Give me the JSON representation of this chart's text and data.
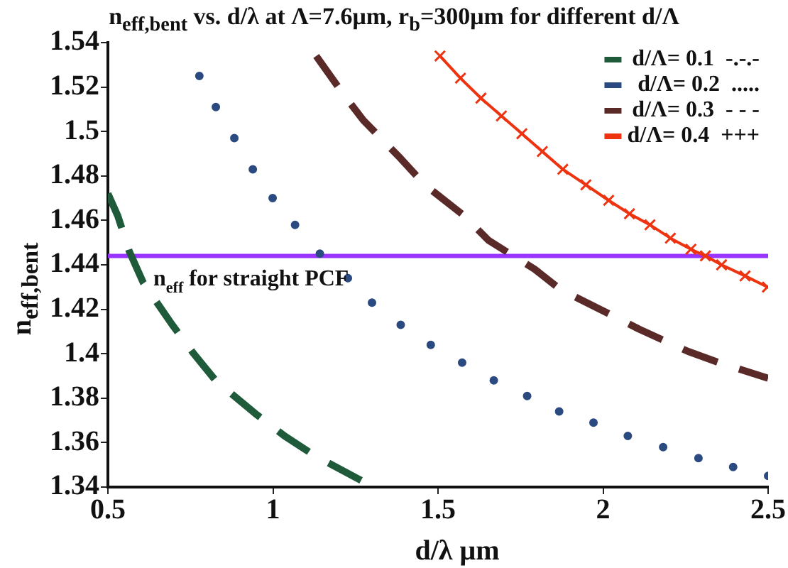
{
  "chart_data": {
    "type": "line",
    "title": "n$_{eff,bent}$ vs. d/λ at Λ=7.6μm, r$_{b}$=300μm for different d/Λ",
    "xlabel": "d/λ  μm",
    "ylabel": "n$_{eff,bent}$",
    "xlim": [
      0.5,
      2.5
    ],
    "xticks": [
      0.5,
      1,
      1.5,
      2,
      2.5
    ],
    "ylim": [
      1.34,
      1.54
    ],
    "yticks": [
      1.34,
      1.36,
      1.38,
      1.4,
      1.42,
      1.44,
      1.46,
      1.48,
      1.5,
      1.52,
      1.54
    ],
    "grid": false,
    "legend": "top right",
    "series": [
      {
        "name": "d/Λ= 0.1  -.-.-",
        "line_style": "dashed",
        "color": "#1f5a3a",
        "x": [
          0.5,
          0.53,
          0.565,
          0.607,
          0.695,
          0.76,
          0.826,
          0.947,
          1.035,
          1.128,
          1.267
        ],
        "values": [
          1.472,
          1.462,
          1.446,
          1.432,
          1.413,
          1.4,
          1.388,
          1.373,
          1.363,
          1.354,
          1.343
        ]
      },
      {
        "name": "d/Λ= 0.2  .....",
        "type": "scatter",
        "marker": "circle",
        "color": "#2a4a80",
        "x": [
          0.777,
          0.827,
          0.883,
          0.939,
          0.999,
          1.067,
          1.142,
          1.227,
          1.3,
          1.387,
          1.478,
          1.573,
          1.669,
          1.77,
          1.867,
          1.971,
          2.075,
          2.182,
          2.289,
          2.394,
          2.5
        ],
        "values": [
          1.525,
          1.511,
          1.497,
          1.483,
          1.47,
          1.458,
          1.445,
          1.434,
          1.423,
          1.413,
          1.404,
          1.396,
          1.388,
          1.381,
          1.374,
          1.369,
          1.363,
          1.358,
          1.353,
          1.349,
          1.345
        ]
      },
      {
        "name": "d/Λ= 0.3  - - -",
        "line_style": "dashed",
        "color": "#5a2a28",
        "x": [
          1.131,
          1.212,
          1.274,
          1.386,
          1.46,
          1.58,
          1.653,
          1.793,
          1.87,
          2.017,
          2.11,
          2.258,
          2.351,
          2.5
        ],
        "values": [
          1.534,
          1.517,
          1.505,
          1.488,
          1.476,
          1.462,
          1.451,
          1.438,
          1.429,
          1.418,
          1.411,
          1.401,
          1.396,
          1.389
        ]
      },
      {
        "name": "d/Λ= 0.4  +++",
        "line_style": "solid",
        "marker": "cross",
        "color": "#ee3311",
        "x": [
          1.506,
          1.568,
          1.63,
          1.692,
          1.754,
          1.816,
          1.878,
          1.948,
          2.017,
          2.08,
          2.142,
          2.204,
          2.266,
          2.31,
          2.359,
          2.43,
          2.498
        ],
        "values": [
          1.534,
          1.524,
          1.515,
          1.507,
          1.499,
          1.491,
          1.483,
          1.476,
          1.469,
          1.463,
          1.458,
          1.452,
          1.447,
          1.444,
          1.44,
          1.435,
          1.43
        ]
      }
    ],
    "ref_lines": [
      {
        "axis": "y",
        "value": 1.444,
        "label": "n$_{eff}$ for straight PCF",
        "color": "#9933ff",
        "line_style": "solid"
      }
    ]
  }
}
